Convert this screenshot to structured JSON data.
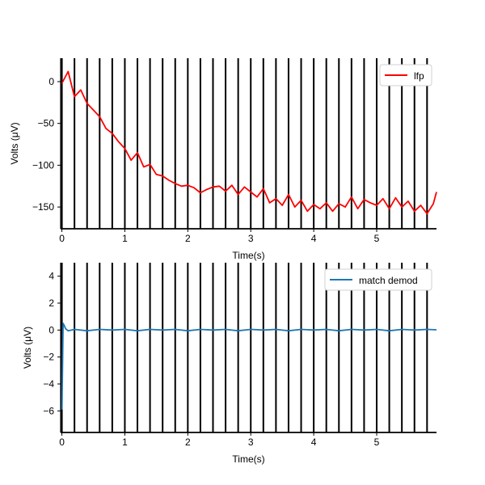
{
  "chart_data": [
    {
      "type": "line",
      "xlabel": "Time(s)",
      "ylabel": "Volts (μV)",
      "xlim": [
        -0.02,
        5.95
      ],
      "ylim": [
        -176,
        28
      ],
      "xticks": [
        0,
        1,
        2,
        3,
        4,
        5
      ],
      "yticks": [
        0,
        -50,
        -100,
        -150
      ],
      "grid": false,
      "legend_position": "top-right",
      "vertical_markers": [
        0.0,
        0.2,
        0.4,
        0.6,
        0.8,
        1.0,
        1.2,
        1.4,
        1.6,
        1.8,
        2.0,
        2.2,
        2.4,
        2.6,
        2.8,
        3.0,
        3.2,
        3.4,
        3.6,
        3.8,
        4.0,
        4.2,
        4.4,
        4.6,
        4.8,
        5.0,
        5.2,
        5.4,
        5.6,
        5.8
      ],
      "series": [
        {
          "name": "lfp",
          "color": "#ff0000",
          "x": [
            0.0,
            0.1,
            0.2,
            0.3,
            0.4,
            0.5,
            0.6,
            0.7,
            0.8,
            0.9,
            1.0,
            1.1,
            1.2,
            1.3,
            1.4,
            1.5,
            1.6,
            1.7,
            1.8,
            1.9,
            2.0,
            2.1,
            2.2,
            2.3,
            2.4,
            2.5,
            2.6,
            2.7,
            2.8,
            2.9,
            3.0,
            3.1,
            3.2,
            3.3,
            3.4,
            3.5,
            3.6,
            3.7,
            3.8,
            3.9,
            4.0,
            4.1,
            4.2,
            4.3,
            4.4,
            4.5,
            4.6,
            4.7,
            4.8,
            4.9,
            5.0,
            5.1,
            5.2,
            5.3,
            5.4,
            5.5,
            5.6,
            5.7,
            5.8,
            5.9,
            5.95
          ],
          "values": [
            -2,
            12,
            -18,
            -10,
            -26,
            -34,
            -42,
            -56,
            -62,
            -72,
            -80,
            -94,
            -85,
            -102,
            -99,
            -111,
            -113,
            -118,
            -122,
            -125,
            -124,
            -127,
            -133,
            -129,
            -126,
            -125,
            -131,
            -124,
            -135,
            -126,
            -132,
            -138,
            -128,
            -145,
            -140,
            -148,
            -135,
            -150,
            -142,
            -155,
            -147,
            -152,
            -145,
            -155,
            -146,
            -150,
            -138,
            -152,
            -141,
            -145,
            -148,
            -140,
            -152,
            -139,
            -150,
            -143,
            -155,
            -148,
            -158,
            -146,
            -132
          ]
        }
      ]
    },
    {
      "type": "line",
      "xlabel": "Time(s)",
      "ylabel": "Volts (μV)",
      "xlim": [
        -0.02,
        5.95
      ],
      "ylim": [
        -7.6,
        5.0
      ],
      "xticks": [
        0,
        1,
        2,
        3,
        4,
        5
      ],
      "yticks": [
        4,
        2,
        0,
        -2,
        -4,
        -6
      ],
      "grid": false,
      "legend_position": "top-right",
      "vertical_markers": [
        0.0,
        0.2,
        0.4,
        0.6,
        0.8,
        1.0,
        1.2,
        1.4,
        1.6,
        1.8,
        2.0,
        2.2,
        2.4,
        2.6,
        2.8,
        3.0,
        3.2,
        3.4,
        3.6,
        3.8,
        4.0,
        4.2,
        4.4,
        4.6,
        4.8,
        5.0,
        5.2,
        5.4,
        5.6,
        5.8
      ],
      "series": [
        {
          "name": "match demod",
          "color": "#1f77b4",
          "x": [
            0.0,
            0.01,
            0.02,
            0.04,
            0.06,
            0.1,
            0.2,
            0.4,
            0.6,
            0.8,
            1.0,
            1.2,
            1.4,
            1.6,
            1.8,
            2.0,
            2.2,
            2.4,
            2.6,
            2.8,
            3.0,
            3.2,
            3.4,
            3.6,
            3.8,
            4.0,
            4.2,
            4.4,
            4.6,
            4.8,
            5.0,
            5.2,
            5.4,
            5.6,
            5.8,
            5.95
          ],
          "values": [
            -5.9,
            -3.0,
            0.5,
            0.3,
            0.1,
            -0.05,
            0.05,
            -0.05,
            0.05,
            0.0,
            0.05,
            -0.05,
            0.05,
            0.0,
            0.05,
            -0.05,
            0.05,
            0.0,
            0.05,
            -0.05,
            0.05,
            0.0,
            0.05,
            -0.05,
            0.05,
            0.0,
            0.05,
            -0.05,
            0.05,
            0.0,
            0.05,
            -0.05,
            0.05,
            0.0,
            0.05,
            0.02
          ]
        }
      ]
    }
  ]
}
